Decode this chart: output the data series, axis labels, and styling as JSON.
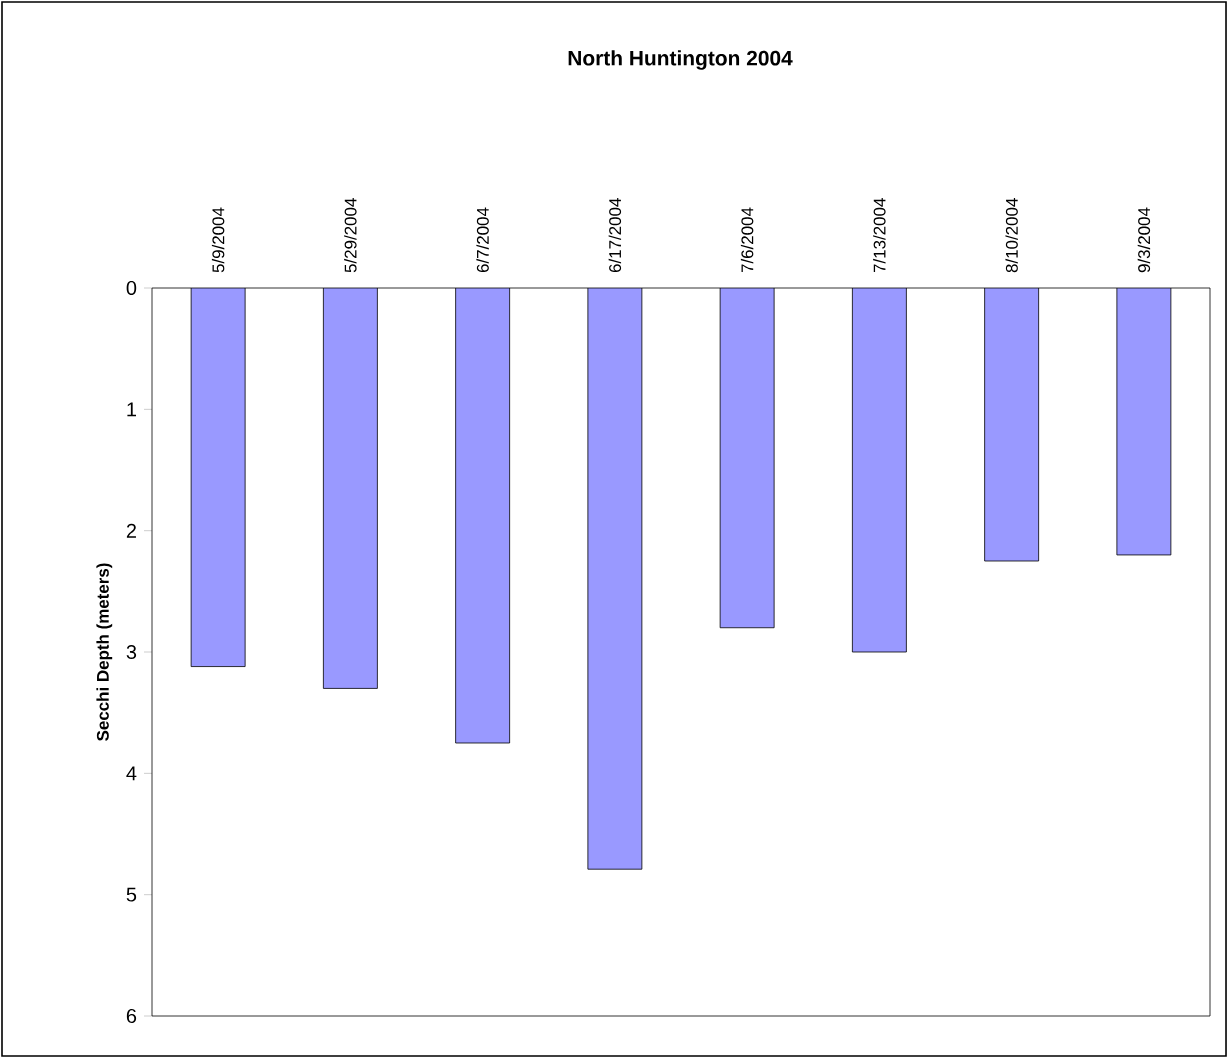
{
  "chart_data": {
    "type": "bar",
    "title": "North Huntington 2004",
    "ylabel": "Secchi Depth (meters)",
    "categories": [
      "5/9/2004",
      "5/29/2004",
      "6/7/2004",
      "6/17/2004",
      "7/6/2004",
      "7/13/2004",
      "8/10/2004",
      "9/3/2004"
    ],
    "values": [
      3.12,
      3.3,
      3.75,
      4.79,
      2.8,
      3.0,
      2.25,
      2.2
    ],
    "color": "#9999ff",
    "ylim": [
      6,
      0
    ],
    "yticks": [
      0,
      1,
      2,
      3,
      4,
      5,
      6
    ],
    "grid": false
  }
}
